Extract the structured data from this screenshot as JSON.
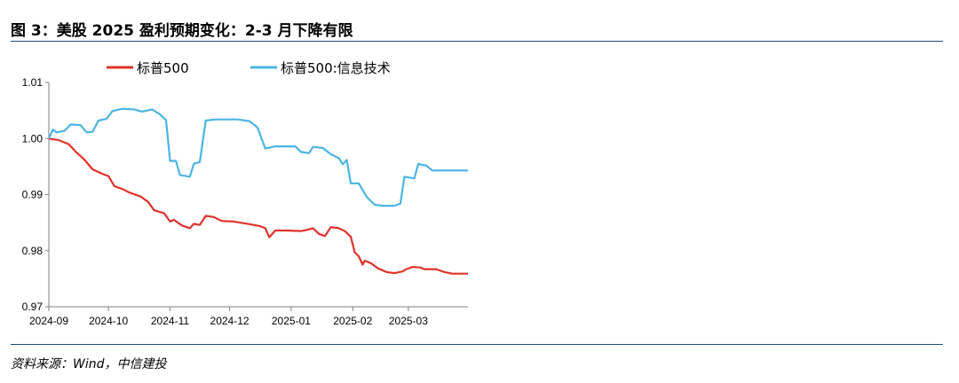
{
  "header": {
    "title": "图 3：美股 2025 盈利预期变化：2-3 月下降有限"
  },
  "footer": {
    "source": "资料来源：Wind，中信建投"
  },
  "chart_data": {
    "type": "line",
    "title": "图 3：美股 2025 盈利预期变化：2-3 月下降有限",
    "xlabel": "",
    "ylabel": "",
    "x_ticks": [
      "2024-09",
      "2024-10",
      "2024-11",
      "2024-12",
      "2025-01",
      "2025-02",
      "2025-03"
    ],
    "x_range": [
      "2024-09-01",
      "2025-03-31"
    ],
    "ylim": [
      0.97,
      1.01
    ],
    "y_ticks": [
      "0.97",
      "0.98",
      "0.99",
      "1.00",
      "1.01"
    ],
    "grid": false,
    "legend_position": "top",
    "series": [
      {
        "name": "标普500",
        "color": "#e0322b",
        "points": [
          [
            "2024-09-01",
            1.0
          ],
          [
            "2024-09-06",
            0.9997
          ],
          [
            "2024-09-11",
            0.999
          ],
          [
            "2024-09-15",
            0.9975
          ],
          [
            "2024-09-19",
            0.9962
          ],
          [
            "2024-09-23",
            0.9945
          ],
          [
            "2024-09-28",
            0.9937
          ],
          [
            "2024-10-01",
            0.9933
          ],
          [
            "2024-10-04",
            0.9915
          ],
          [
            "2024-10-08",
            0.991
          ],
          [
            "2024-10-12",
            0.9903
          ],
          [
            "2024-10-17",
            0.9897
          ],
          [
            "2024-10-21",
            0.9887
          ],
          [
            "2024-10-24",
            0.9872
          ],
          [
            "2024-10-29",
            0.9867
          ],
          [
            "2024-11-01",
            0.9852
          ],
          [
            "2024-11-03",
            0.9855
          ],
          [
            "2024-11-07",
            0.9845
          ],
          [
            "2024-11-11",
            0.984
          ],
          [
            "2024-11-13",
            0.9848
          ],
          [
            "2024-11-16",
            0.9846
          ],
          [
            "2024-11-19",
            0.9862
          ],
          [
            "2024-11-23",
            0.986
          ],
          [
            "2024-11-27",
            0.9853
          ],
          [
            "2024-12-03",
            0.9852
          ],
          [
            "2024-12-10",
            0.9848
          ],
          [
            "2024-12-16",
            0.9844
          ],
          [
            "2024-12-19",
            0.984
          ],
          [
            "2024-12-21",
            0.9824
          ],
          [
            "2024-12-24",
            0.9836
          ],
          [
            "2024-12-30",
            0.9836
          ],
          [
            "2025-01-06",
            0.9835
          ],
          [
            "2025-01-09",
            0.9837
          ],
          [
            "2025-01-12",
            0.984
          ],
          [
            "2025-01-15",
            0.983
          ],
          [
            "2025-01-18",
            0.9826
          ],
          [
            "2025-01-21",
            0.9842
          ],
          [
            "2025-01-25",
            0.984
          ],
          [
            "2025-01-28",
            0.9835
          ],
          [
            "2025-01-31",
            0.9825
          ],
          [
            "2025-02-02",
            0.9797
          ],
          [
            "2025-02-04",
            0.979
          ],
          [
            "2025-02-06",
            0.9775
          ],
          [
            "2025-02-07",
            0.9782
          ],
          [
            "2025-02-10",
            0.9778
          ],
          [
            "2025-02-14",
            0.9768
          ],
          [
            "2025-02-18",
            0.9762
          ],
          [
            "2025-02-22",
            0.976
          ],
          [
            "2025-02-26",
            0.9763
          ],
          [
            "2025-02-28",
            0.9767
          ],
          [
            "2025-03-03",
            0.9771
          ],
          [
            "2025-03-07",
            0.977
          ],
          [
            "2025-03-09",
            0.9767
          ],
          [
            "2025-03-15",
            0.9767
          ],
          [
            "2025-03-19",
            0.9762
          ],
          [
            "2025-03-23",
            0.9759
          ],
          [
            "2025-03-31",
            0.9759
          ]
        ]
      },
      {
        "name": "标普500:信息技术",
        "color": "#4cb4e4",
        "points": [
          [
            "2024-09-01",
            1.0
          ],
          [
            "2024-09-03",
            1.0016
          ],
          [
            "2024-09-05",
            1.0011
          ],
          [
            "2024-09-09",
            1.0014
          ],
          [
            "2024-09-12",
            1.0025
          ],
          [
            "2024-09-17",
            1.0024
          ],
          [
            "2024-09-20",
            1.0011
          ],
          [
            "2024-09-23",
            1.0012
          ],
          [
            "2024-09-26",
            1.0032
          ],
          [
            "2024-09-30",
            1.0035
          ],
          [
            "2024-10-03",
            1.0049
          ],
          [
            "2024-10-08",
            1.0053
          ],
          [
            "2024-10-14",
            1.0052
          ],
          [
            "2024-10-18",
            1.0048
          ],
          [
            "2024-10-23",
            1.0052
          ],
          [
            "2024-10-27",
            1.0043
          ],
          [
            "2024-10-30",
            1.0033
          ],
          [
            "2024-11-01",
            0.996
          ],
          [
            "2024-11-04",
            0.996
          ],
          [
            "2024-11-06",
            0.9935
          ],
          [
            "2024-11-11",
            0.9932
          ],
          [
            "2024-11-13",
            0.9955
          ],
          [
            "2024-11-16",
            0.9958
          ],
          [
            "2024-11-19",
            1.0032
          ],
          [
            "2024-11-24",
            1.0034
          ],
          [
            "2024-12-05",
            1.0034
          ],
          [
            "2024-12-11",
            1.0031
          ],
          [
            "2024-12-15",
            1.002
          ],
          [
            "2024-12-19",
            0.9982
          ],
          [
            "2024-12-24",
            0.9986
          ],
          [
            "2025-01-03",
            0.9986
          ],
          [
            "2025-01-06",
            0.9976
          ],
          [
            "2025-01-10",
            0.9974
          ],
          [
            "2025-01-12",
            0.9985
          ],
          [
            "2025-01-17",
            0.9983
          ],
          [
            "2025-01-21",
            0.9972
          ],
          [
            "2025-01-25",
            0.9965
          ],
          [
            "2025-01-27",
            0.9954
          ],
          [
            "2025-01-29",
            0.9962
          ],
          [
            "2025-01-31",
            0.992
          ],
          [
            "2025-02-04",
            0.992
          ],
          [
            "2025-02-08",
            0.9896
          ],
          [
            "2025-02-12",
            0.9882
          ],
          [
            "2025-02-16",
            0.988
          ],
          [
            "2025-02-22",
            0.988
          ],
          [
            "2025-02-25",
            0.9884
          ],
          [
            "2025-02-27",
            0.9932
          ],
          [
            "2025-03-04",
            0.9929
          ],
          [
            "2025-03-06",
            0.9955
          ],
          [
            "2025-03-08",
            0.9953
          ],
          [
            "2025-03-10",
            0.9952
          ],
          [
            "2025-03-13",
            0.9943
          ],
          [
            "2025-03-31",
            0.9943
          ]
        ]
      }
    ]
  }
}
